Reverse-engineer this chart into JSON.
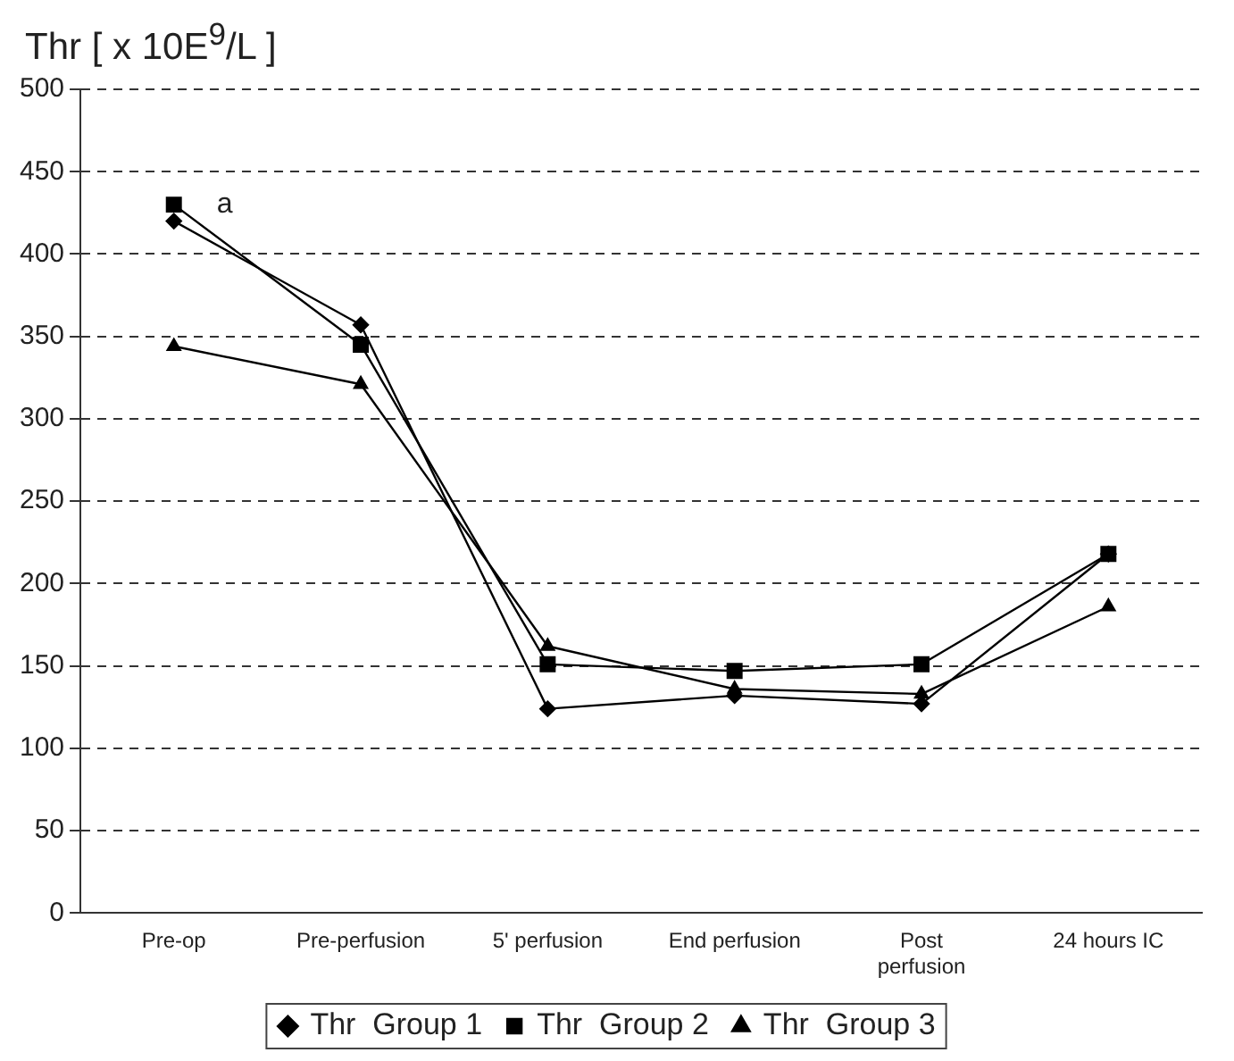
{
  "chart_data": {
    "type": "line",
    "ylabel": "Thr [ x 10E$^{9}$/L ]",
    "categories": [
      "Pre-op",
      "Pre-perfusion",
      "5' perfusion",
      "End perfusion",
      "Post perfusion",
      "24 hours IC"
    ],
    "series": [
      {
        "name": "Thr  Group 1",
        "color": "#000000",
        "marker": "diamond",
        "values": [
          420,
          357,
          124,
          132,
          127,
          218
        ]
      },
      {
        "name": "Thr  Group 2",
        "color": "#000000",
        "marker": "square",
        "values": [
          430,
          345,
          151,
          147,
          151,
          218
        ]
      },
      {
        "name": "Thr  Group 3",
        "color": "#000000",
        "marker": "triangle",
        "values": [
          344,
          321,
          162,
          136,
          133,
          186
        ]
      }
    ],
    "ylim": [
      0,
      500
    ],
    "yticks": [
      0,
      50,
      100,
      150,
      200,
      250,
      300,
      350,
      400,
      450,
      500
    ],
    "grid": "y",
    "legend": "bottom",
    "line_style": "solid",
    "annotations": [
      {
        "text": "a",
        "x": "Pre-op",
        "y": 430
      }
    ]
  }
}
